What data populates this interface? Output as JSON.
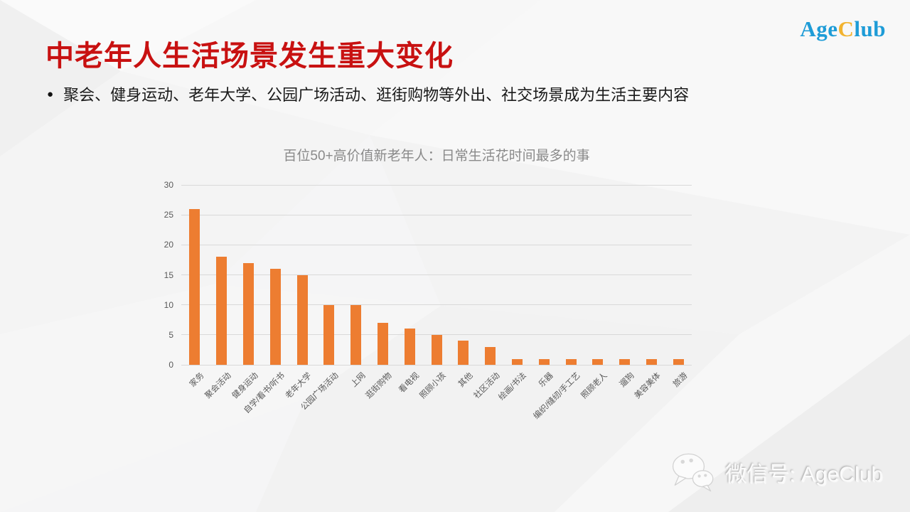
{
  "slide": {
    "title": "中老年人生活场景发生重大变化",
    "title_color": "#C81111",
    "bullet_marker": "●",
    "bullet": "聚会、健身运动、老年大学、公园广场活动、逛街购物等外出、社交场景成为生活主要内容"
  },
  "logo": {
    "part1": "Age",
    "part2": "C",
    "part3": "lub",
    "blue": "#1E9CD7",
    "yellow": "#F2B330"
  },
  "footer": {
    "wechat_label": "微信号: AgeClub"
  },
  "chart_data": {
    "type": "bar",
    "title": "百位50+高价值新老年人：日常生活花时间最多的事",
    "categories": [
      "家务",
      "聚会活动",
      "健身运动",
      "自学/看书/听书",
      "老年大学",
      "公园广场活动",
      "上网",
      "逛街购物",
      "看电视",
      "照顾小孩",
      "其他",
      "社区活动",
      "绘画/书法",
      "乐器",
      "编织/缝纫/手工艺",
      "照顾老人",
      "遛狗",
      "美容美体",
      "旅游"
    ],
    "values": [
      26,
      18,
      17,
      16,
      15,
      10,
      10,
      7,
      6,
      5,
      4,
      3,
      1,
      1,
      1,
      1,
      1,
      1,
      1
    ],
    "xlabel": "",
    "ylabel": "",
    "ylim": [
      0,
      30
    ],
    "ytick_step": 5,
    "bar_color": "#ED7D31",
    "gridline_color": "#d9d9d9",
    "grid": true,
    "legend": false
  }
}
